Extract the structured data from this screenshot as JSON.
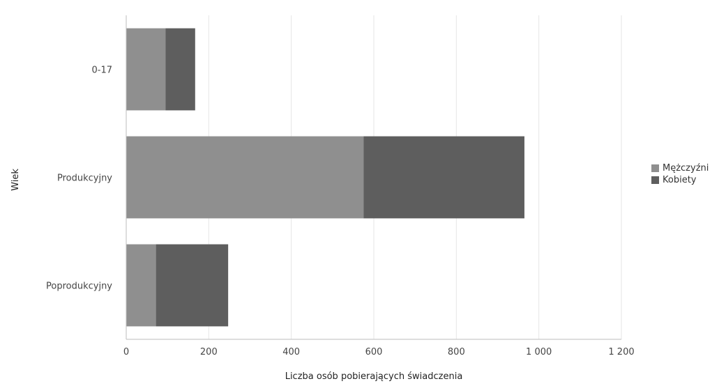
{
  "chart_data": {
    "type": "bar",
    "orientation": "horizontal",
    "stacked": true,
    "categories": [
      "0-17",
      "Produkcyjny",
      "Poprodukcyjny"
    ],
    "series": [
      {
        "name": "Mężczyźni",
        "values": [
          95,
          575,
          72
        ],
        "color": "#8f8f8f"
      },
      {
        "name": "Kobiety",
        "values": [
          72,
          390,
          175
        ],
        "color": "#5e5e5e"
      }
    ],
    "xlabel": "Liczba osób pobierających świadczenia",
    "ylabel": "Wiek",
    "xlim": [
      0,
      1200
    ],
    "xticks": [
      0,
      200,
      400,
      600,
      800,
      1000,
      1200
    ],
    "xtick_labels": [
      "0",
      "200",
      "400",
      "600",
      "800",
      "1 000",
      "1 200"
    ],
    "grid": true,
    "legend_position": "right"
  }
}
